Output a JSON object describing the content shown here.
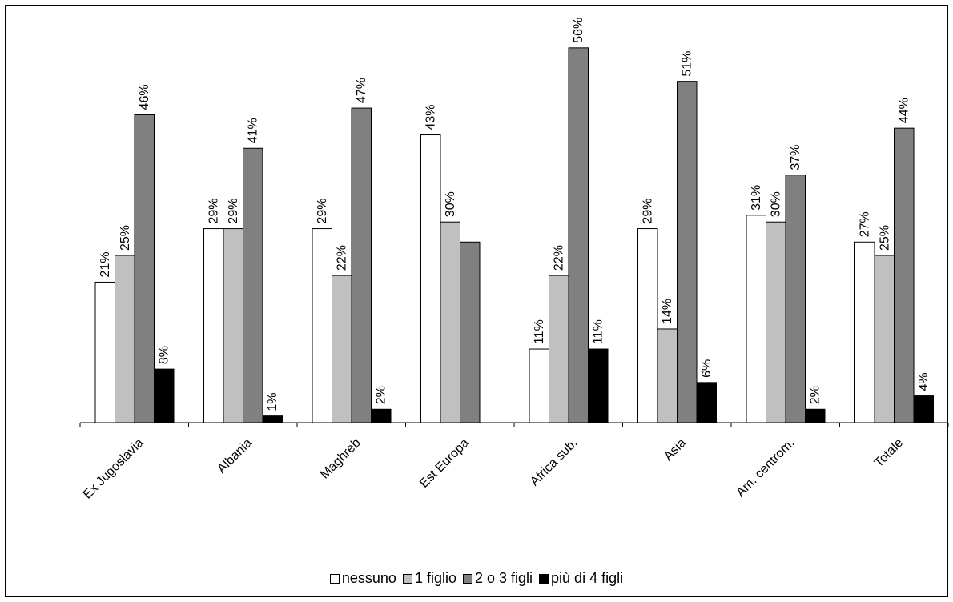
{
  "chart_data": {
    "type": "bar",
    "title": "",
    "xlabel": "",
    "ylabel": "",
    "ylim": [
      0,
      60
    ],
    "grid": false,
    "legend_position": "bottom",
    "categories": [
      "Ex Jugoslavia",
      "Albania",
      "Maghreb",
      "Est Europa",
      "Africa sub.",
      "Asia",
      "Am. centrom.",
      "Totale"
    ],
    "series": [
      {
        "name": "nessuno",
        "color": "#ffffff",
        "values": [
          21,
          29,
          29,
          43,
          11,
          29,
          31,
          27
        ],
        "labels": [
          "21%",
          "29%",
          "29%",
          "43%",
          "11%",
          "29%",
          "31%",
          "27%"
        ]
      },
      {
        "name": "1 figlio",
        "color": "#c0c0c0",
        "values": [
          25,
          29,
          22,
          30,
          22,
          14,
          30,
          25
        ],
        "labels": [
          "25%",
          "29%",
          "22%",
          "30%",
          "22%",
          "14%",
          "30%",
          "25%"
        ]
      },
      {
        "name": "2 o 3 figli",
        "color": "#808080",
        "values": [
          46,
          41,
          47,
          27,
          56,
          51,
          37,
          44
        ],
        "labels": [
          "46%",
          "41%",
          "47%",
          "",
          "56%",
          "51%",
          "37%",
          "44%"
        ]
      },
      {
        "name": "più di 4 figli",
        "color": "#000000",
        "values": [
          8,
          1,
          2,
          0,
          11,
          6,
          2,
          4
        ],
        "labels": [
          "8%",
          "1%",
          "2%",
          "",
          "11%",
          "6%",
          "2%",
          "4%"
        ]
      }
    ]
  }
}
